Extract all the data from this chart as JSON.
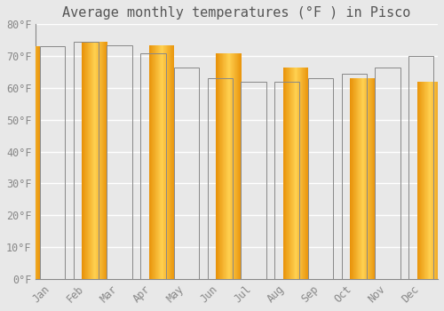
{
  "title": "Average monthly temperatures (°F ) in Pisco",
  "months": [
    "Jan",
    "Feb",
    "Mar",
    "Apr",
    "May",
    "Jun",
    "Jul",
    "Aug",
    "Sep",
    "Oct",
    "Nov",
    "Dec"
  ],
  "values": [
    73,
    74.5,
    73.5,
    71,
    66.5,
    63,
    62,
    62,
    63,
    64.5,
    66.5,
    70
  ],
  "bar_color_center": "#FFD050",
  "bar_color_edge": "#E8930A",
  "ylim": [
    0,
    80
  ],
  "yticks": [
    0,
    10,
    20,
    30,
    40,
    50,
    60,
    70,
    80
  ],
  "ytick_labels": [
    "0°F",
    "10°F",
    "20°F",
    "30°F",
    "40°F",
    "50°F",
    "60°F",
    "70°F",
    "80°F"
  ],
  "background_color": "#e8e8e8",
  "plot_background": "#e8e8e8",
  "grid_color": "#ffffff",
  "title_fontsize": 11,
  "tick_fontsize": 8.5,
  "font_family": "monospace",
  "title_color": "#555555",
  "tick_color": "#888888"
}
